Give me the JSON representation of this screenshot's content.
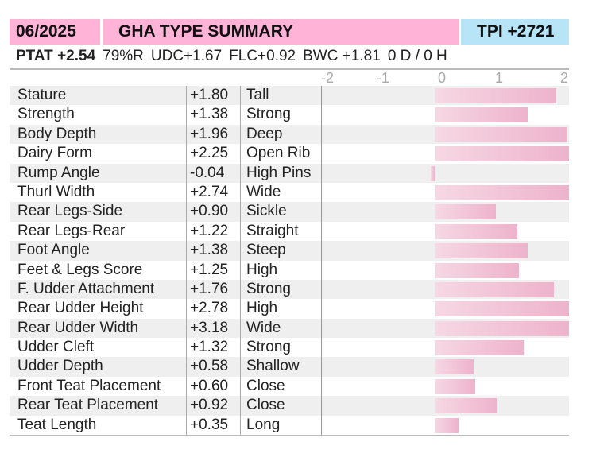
{
  "header": {
    "date": "06/2025",
    "title": "GHA TYPE SUMMARY",
    "tpi": "TPI +2721"
  },
  "summary": {
    "ptat": "PTAT +2.54",
    "reliability": "79%R",
    "udc": "UDC+1.67",
    "flc": "FLC+0.92",
    "bwc": "BWC +1.81",
    "daughters_herds": "0 D /  0 H"
  },
  "axis": {
    "ticks": [
      "-2",
      "-1",
      "0",
      "1",
      "2"
    ],
    "min": -2,
    "max": 2
  },
  "colors": {
    "pink": "#ffb3d6",
    "blue": "#b8e4f7",
    "bar": "#eeb3cc"
  },
  "traits": [
    {
      "name": "Stature",
      "value": "+1.80",
      "desc": "Tall",
      "num": 1.8
    },
    {
      "name": "Strength",
      "value": "+1.38",
      "desc": "Strong",
      "num": 1.38
    },
    {
      "name": "Body Depth",
      "value": "+1.96",
      "desc": "Deep",
      "num": 1.96
    },
    {
      "name": "Dairy Form",
      "value": "+2.25",
      "desc": "Open Rib",
      "num": 2.25
    },
    {
      "name": "Rump Angle",
      "value": "-0.04",
      "desc": "High Pins",
      "num": -0.04
    },
    {
      "name": "Thurl Width",
      "value": "+2.74",
      "desc": "Wide",
      "num": 2.74
    },
    {
      "name": "Rear Legs-Side",
      "value": "+0.90",
      "desc": "Sickle",
      "num": 0.9
    },
    {
      "name": "Rear Legs-Rear",
      "value": "+1.22",
      "desc": "Straight",
      "num": 1.22
    },
    {
      "name": "Foot Angle",
      "value": "+1.38",
      "desc": "Steep",
      "num": 1.38
    },
    {
      "name": "Feet & Legs Score",
      "value": "+1.25",
      "desc": "High",
      "num": 1.25
    },
    {
      "name": "F. Udder Attachment",
      "value": "+1.76",
      "desc": "Strong",
      "num": 1.76
    },
    {
      "name": "Rear Udder Height",
      "value": "+2.78",
      "desc": "High",
      "num": 2.78
    },
    {
      "name": "Rear Udder Width",
      "value": "+3.18",
      "desc": "Wide",
      "num": 3.18
    },
    {
      "name": "Udder Cleft",
      "value": "+1.32",
      "desc": "Strong",
      "num": 1.32
    },
    {
      "name": "Udder Depth",
      "value": "+0.58",
      "desc": "Shallow",
      "num": 0.58
    },
    {
      "name": "Front Teat Placement",
      "value": "+0.60",
      "desc": "Close",
      "num": 0.6
    },
    {
      "name": "Rear Teat Placement",
      "value": "+0.92",
      "desc": "Close",
      "num": 0.92
    },
    {
      "name": "Teat Length",
      "value": "+0.35",
      "desc": "Long",
      "num": 0.35
    }
  ]
}
